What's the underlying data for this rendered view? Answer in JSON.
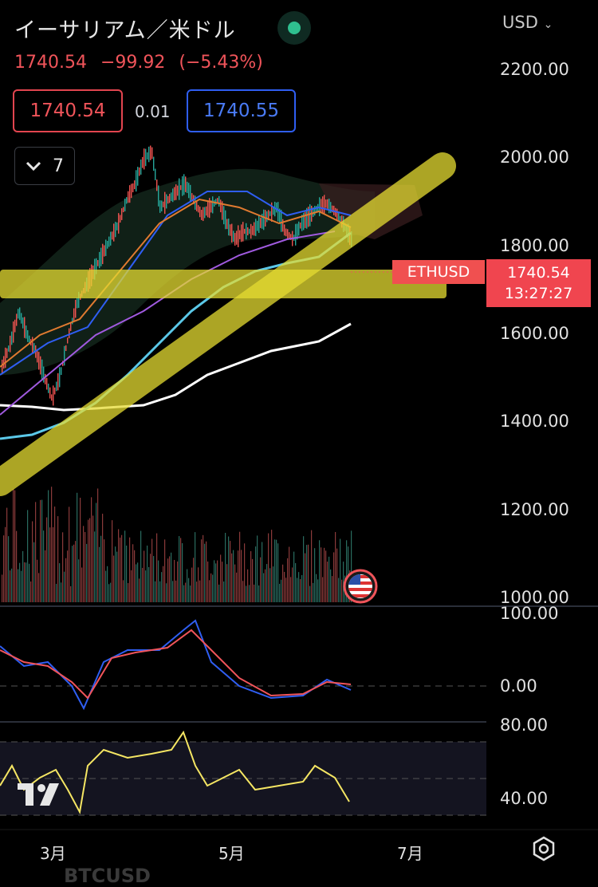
{
  "header": {
    "title": "イーサリアム／米ドル",
    "currency": "USD",
    "price": "1740.54",
    "change": "−99.92",
    "change_pct": "(−5.43%)"
  },
  "order": {
    "sell_price": "1740.54",
    "spread": "0.01",
    "buy_price": "1740.55"
  },
  "indicators": {
    "count": "7"
  },
  "price_axis": [
    "2200.00",
    "2000.00",
    "1800.00",
    "1600.00",
    "1400.00",
    "1200.00",
    "1000.00"
  ],
  "macd_axis": [
    "100.00",
    "0.00"
  ],
  "rsi_axis": [
    "80.00",
    "40.00"
  ],
  "time_axis": [
    "3月",
    "5月",
    "7月"
  ],
  "tags": {
    "symbol": "ETHUSD",
    "price": "1740.54",
    "countdown": "13:27:27"
  },
  "bottom_ghost": "BTCUSD",
  "colors": {
    "down": "#f0545a",
    "buy": "#4a7bf5",
    "highlight": "#e6dc32"
  }
}
